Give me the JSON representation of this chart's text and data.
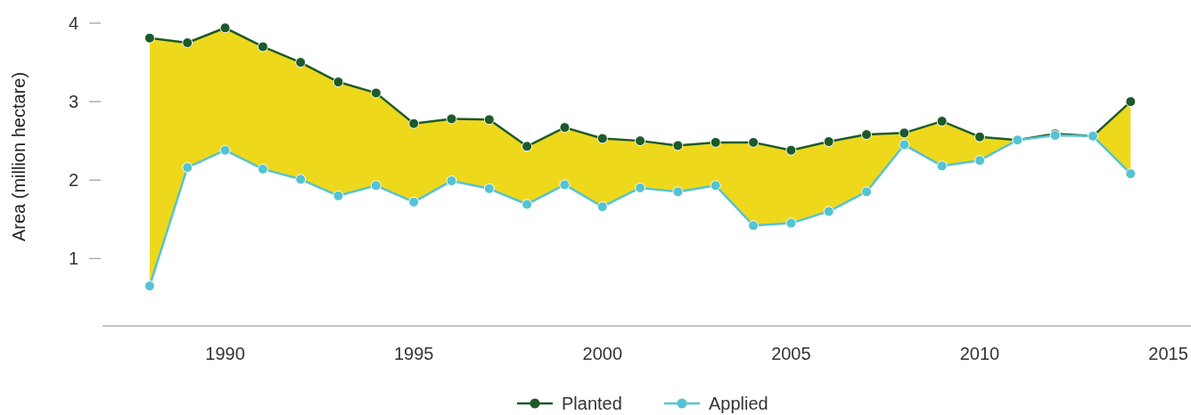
{
  "chart_data": {
    "type": "line",
    "ylabel": "Area (million hectare)",
    "x": [
      1988,
      1989,
      1990,
      1991,
      1992,
      1993,
      1994,
      1995,
      1996,
      1997,
      1998,
      1999,
      2000,
      2001,
      2002,
      2003,
      2004,
      2005,
      2006,
      2007,
      2008,
      2009,
      2010,
      2011,
      2012,
      2013,
      2014
    ],
    "series": [
      {
        "name": "Planted",
        "color": "#1d5a2a",
        "values": [
          3.81,
          3.75,
          3.94,
          3.7,
          3.5,
          3.25,
          3.11,
          2.72,
          2.78,
          2.77,
          2.43,
          2.67,
          2.53,
          2.5,
          2.44,
          2.48,
          2.48,
          2.38,
          2.49,
          2.58,
          2.6,
          2.75,
          2.55,
          2.51,
          2.59,
          2.56,
          3.0
        ],
        "lower": [
          0.65,
          2.16,
          2.38,
          2.14,
          2.01,
          1.8,
          1.93,
          1.72,
          1.99,
          1.89,
          1.69,
          1.94,
          1.66,
          1.9,
          1.85,
          1.93,
          1.42,
          1.45,
          1.6,
          1.85,
          2.45,
          2.18,
          2.25,
          2.51,
          2.57,
          2.56,
          2.08
        ],
        "upper": [
          3.81,
          3.75,
          3.94,
          3.7,
          3.5,
          3.25,
          3.11,
          2.72,
          2.78,
          2.77,
          2.43,
          2.67,
          2.53,
          2.5,
          2.44,
          2.48,
          2.48,
          2.38,
          2.49,
          2.58,
          2.6,
          2.75,
          2.55,
          2.51,
          2.59,
          2.56,
          3.0
        ]
      },
      {
        "name": "Applied",
        "color": "#55c3d3",
        "values": [
          0.65,
          2.16,
          2.38,
          2.14,
          2.01,
          1.8,
          1.93,
          1.72,
          1.99,
          1.89,
          1.69,
          1.94,
          1.66,
          1.9,
          1.85,
          1.93,
          1.42,
          1.45,
          1.6,
          1.85,
          2.45,
          2.18,
          2.25,
          2.51,
          2.57,
          2.56,
          2.08
        ]
      }
    ],
    "xlim": [
      1986.75,
      2015.6
    ],
    "xticks": [
      1990,
      1995,
      2000,
      2005,
      2010,
      2015
    ],
    "ylim": [
      0.14,
      4
    ],
    "yticks": [
      1,
      2,
      3,
      4
    ],
    "grid": false,
    "legend": "bottom",
    "marker": "circle",
    "line_style": "solid"
  }
}
